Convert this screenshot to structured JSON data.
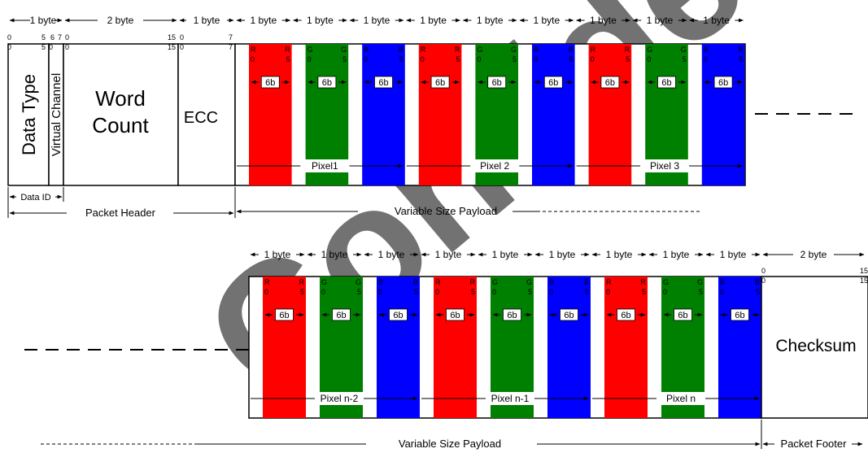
{
  "watermark": "Confidential",
  "colors": {
    "red": "#ff0000",
    "green": "#008000",
    "blue": "#0000ff",
    "watermark": "#e9dfb8"
  },
  "labels": {
    "one_byte": "1 byte",
    "two_byte": "2 byte",
    "data_type": "Data Type",
    "virtual_channel": "Virtual Channel",
    "word_count_line1": "Word",
    "word_count_line2": "Count",
    "ecc": "ECC",
    "data_id": "Data ID",
    "packet_header": "Packet Header",
    "variable_size_payload": "Variable Size Payload",
    "checksum": "Checksum",
    "packet_footer": "Packet Footer",
    "six_b": "6b"
  },
  "bit_labels": {
    "dt_start": "0",
    "dt_end": "5",
    "vc_start": "6",
    "vc_end": "7",
    "wc_start": "0",
    "wc_end": "15",
    "ecc_start": "0",
    "ecc_end": "7",
    "cs_start": "0",
    "cs_end": "15",
    "px_start": "0",
    "px_end": "5"
  },
  "top_channels": [
    {
      "c": "red",
      "letter": "R"
    },
    {
      "c": "green",
      "letter": "G"
    },
    {
      "c": "blue",
      "letter": "B"
    },
    {
      "c": "red",
      "letter": "R"
    },
    {
      "c": "green",
      "letter": "G"
    },
    {
      "c": "blue",
      "letter": "B"
    },
    {
      "c": "red",
      "letter": "R"
    },
    {
      "c": "green",
      "letter": "G"
    },
    {
      "c": "blue",
      "letter": "B"
    }
  ],
  "bottom_channels": [
    {
      "c": "red",
      "letter": "R"
    },
    {
      "c": "green",
      "letter": "G"
    },
    {
      "c": "blue",
      "letter": "B"
    },
    {
      "c": "red",
      "letter": "R"
    },
    {
      "c": "green",
      "letter": "G"
    },
    {
      "c": "blue",
      "letter": "B"
    },
    {
      "c": "red",
      "letter": "R"
    },
    {
      "c": "green",
      "letter": "G"
    },
    {
      "c": "blue",
      "letter": "B"
    }
  ],
  "top_pixels": [
    "Pixel1",
    "Pixel 2",
    "Pixel 3"
  ],
  "bottom_pixels": [
    "Pixel n-2",
    "Pixel n-1",
    "Pixel n"
  ]
}
